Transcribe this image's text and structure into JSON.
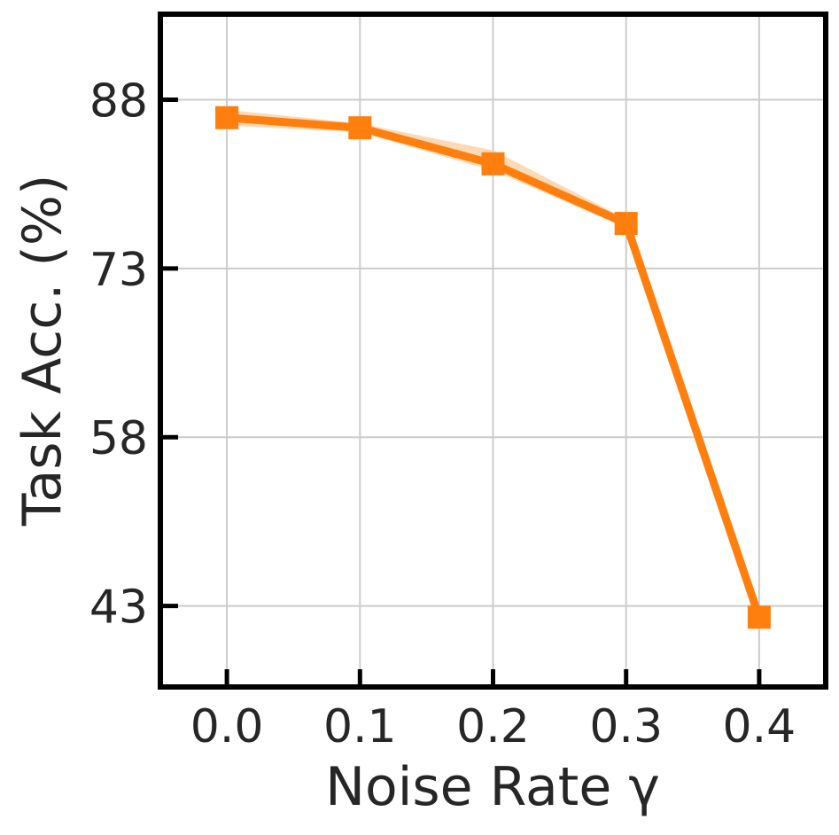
{
  "chart_data": {
    "type": "line",
    "title": "",
    "xlabel": "Noise Rate γ",
    "ylabel": "Task Acc. (%)",
    "x": [
      0.0,
      0.1,
      0.2,
      0.3,
      0.4
    ],
    "x_tick_labels": [
      "0.0",
      "0.1",
      "0.2",
      "0.3",
      "0.4"
    ],
    "y_ticks": [
      43,
      58,
      73,
      88
    ],
    "y_tick_labels": [
      "43",
      "58",
      "73",
      "88"
    ],
    "xlim": [
      -0.05,
      0.45
    ],
    "ylim": [
      35.8,
      95.6
    ],
    "grid": true,
    "series": [
      {
        "values": [
          86.4,
          85.5,
          82.3,
          77.0,
          42.0
        ],
        "lower": [
          85.7,
          85.1,
          81.7,
          76.6,
          41.8
        ],
        "upper": [
          87.1,
          85.9,
          83.5,
          77.4,
          42.2
        ],
        "color": "#ff7f0e",
        "band_color": "#fdd0a2",
        "marker": "square"
      }
    ]
  }
}
